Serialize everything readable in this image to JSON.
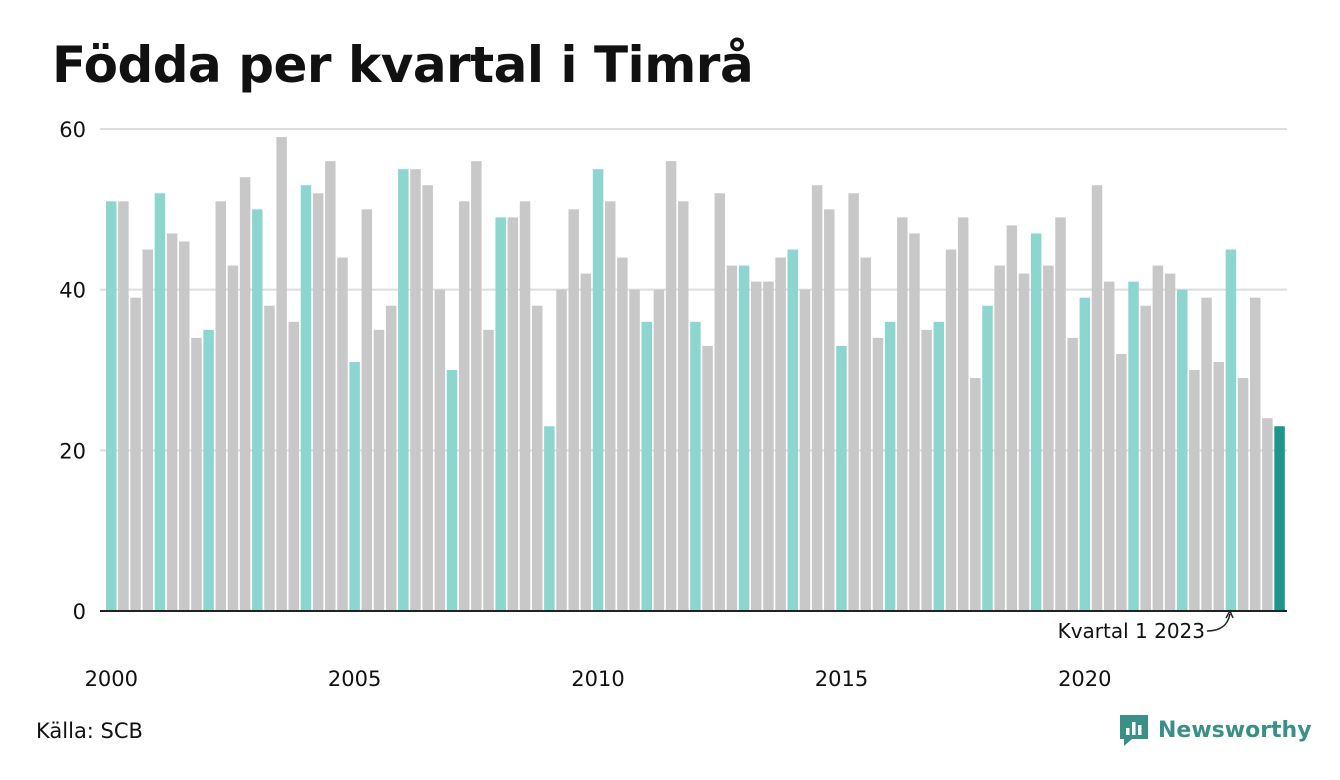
{
  "title": "Födda per kvartal i Timrå",
  "source": "Källa: SCB",
  "brand": {
    "name": "Newsworthy",
    "icon": "newsworthy-logo-icon",
    "color": "#3a8f87"
  },
  "colors": {
    "q1": "#8dd6cf",
    "other": "#c8c8c8",
    "latest": "#1e968b",
    "grid": "#dddddd",
    "axis": "#222222"
  },
  "chart_data": {
    "type": "bar",
    "title": "Födda per kvartal i Timrå",
    "ylim": [
      0,
      60
    ],
    "yticks": [
      0,
      20,
      40,
      60
    ],
    "xtick_labels": [
      "2000",
      "2005",
      "2010",
      "2015",
      "2020"
    ],
    "grid": true,
    "annotation": "Kvartal 1 2023",
    "series": [
      {
        "values": [
          51,
          51,
          39,
          45,
          52,
          47,
          46,
          34,
          35,
          51,
          43,
          54,
          50,
          38,
          59,
          36,
          53,
          52,
          56,
          44,
          31,
          50,
          35,
          38,
          55,
          55,
          53,
          40,
          30,
          51,
          56,
          35,
          49,
          49,
          51,
          38,
          23,
          40,
          50,
          42,
          55,
          51,
          44,
          40,
          36,
          40,
          56,
          51,
          36,
          33,
          52,
          43,
          43,
          41,
          41,
          44,
          45,
          40,
          53,
          50,
          33,
          52,
          44,
          34,
          36,
          49,
          47,
          35,
          36,
          45,
          49,
          29,
          38,
          43,
          48,
          42,
          47,
          43,
          49,
          34,
          39,
          53,
          41,
          32,
          41,
          38,
          43,
          42,
          40,
          30,
          39,
          31,
          45,
          29,
          39,
          24,
          23
        ]
      }
    ]
  }
}
